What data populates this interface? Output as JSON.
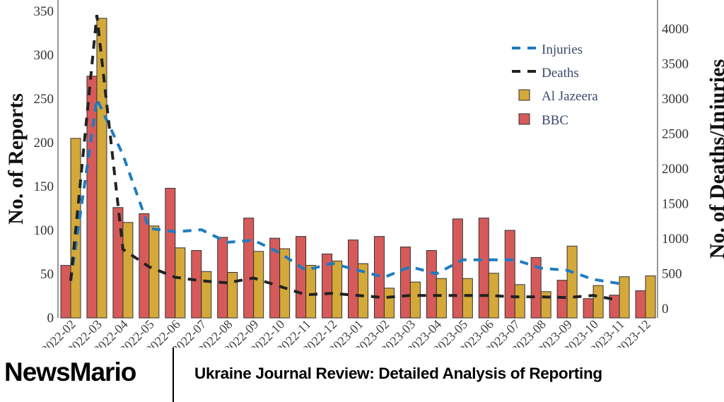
{
  "chart_data": {
    "type": "bar",
    "categories": [
      "2022-02",
      "2022-03",
      "2022-04",
      "2022-05",
      "2022-06",
      "2022-07",
      "2022-08",
      "2022-09",
      "2022-10",
      "2022-11",
      "2022-12",
      "2023-01",
      "2023-02",
      "2023-03",
      "2023-04",
      "2023-05",
      "2023-06",
      "2023-07",
      "2023-08",
      "2023-09",
      "2023-10",
      "2023-11",
      "2023-12"
    ],
    "series": [
      {
        "name": "BBC",
        "type": "bar",
        "axis": "left",
        "color": "#d65a5a",
        "values": [
          60,
          276,
          126,
          119,
          148,
          77,
          92,
          114,
          91,
          93,
          73,
          89,
          93,
          81,
          77,
          113,
          114,
          100,
          69,
          43,
          22,
          26,
          31
        ]
      },
      {
        "name": "Al Jazeera",
        "type": "bar",
        "axis": "left",
        "color": "#d4a93a",
        "values": [
          205,
          342,
          109,
          105,
          80,
          53,
          52,
          76,
          79,
          60,
          65,
          62,
          34,
          41,
          45,
          45,
          51,
          38,
          30,
          82,
          37,
          47,
          48
        ]
      },
      {
        "name": "Injuries",
        "type": "line",
        "style": "dashed",
        "axis": "right",
        "color": "#1f7bc1",
        "values": [
          400,
          3000,
          2200,
          1150,
          1100,
          1130,
          950,
          980,
          800,
          550,
          650,
          550,
          450,
          600,
          500,
          700,
          700,
          700,
          580,
          550,
          420,
          360,
          null
        ]
      },
      {
        "name": "Deaths",
        "type": "line",
        "style": "dashed",
        "axis": "right",
        "color": "#222222",
        "values": [
          400,
          4200,
          850,
          600,
          450,
          400,
          370,
          440,
          320,
          200,
          220,
          190,
          160,
          190,
          190,
          190,
          190,
          170,
          170,
          160,
          190,
          120,
          null
        ]
      }
    ],
    "ylabel": "No. of Reports",
    "ylabel_right": "No. of Deaths/Injuries",
    "ylim": [
      0,
      350
    ],
    "yticks": [
      0,
      50,
      100,
      150,
      200,
      250,
      300,
      350
    ],
    "ylim_right": [
      0,
      4000
    ],
    "yticks_right": [
      0,
      500,
      1000,
      1500,
      2000,
      2500,
      3000,
      3500,
      4000
    ],
    "legend": {
      "position": "top-right",
      "entries": [
        "Injuries",
        "Deaths",
        "Al Jazeera",
        "BBC"
      ]
    },
    "grid": false
  },
  "banner": {
    "brand": "NewsMario",
    "headline": "Ukraine Journal Review: Detailed Analysis of Reporting"
  }
}
